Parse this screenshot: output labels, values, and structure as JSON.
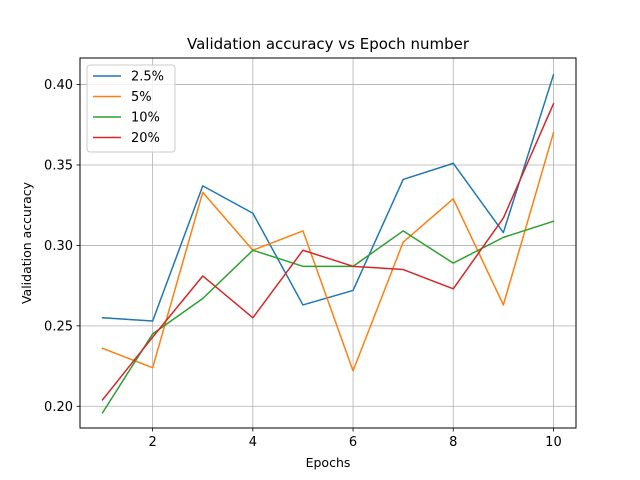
{
  "chart_data": {
    "type": "line",
    "title": "Validation accuracy vs Epoch number",
    "xlabel": "Epochs",
    "ylabel": "Validation accuracy",
    "xlim": [
      0.55,
      10.45
    ],
    "ylim": [
      0.1865,
      0.4165
    ],
    "x_ticks": [
      2,
      4,
      6,
      8,
      10
    ],
    "y_ticks": [
      0.2,
      0.25,
      0.3,
      0.35,
      0.4
    ],
    "y_tick_labels": [
      "0.20",
      "0.25",
      "0.30",
      "0.35",
      "0.40"
    ],
    "grid": true,
    "legend_position": "top-left",
    "x": [
      1,
      2,
      3,
      4,
      5,
      6,
      7,
      8,
      9,
      10
    ],
    "series": [
      {
        "name": "2.5%",
        "color": "#1f77b4",
        "values": [
          0.255,
          0.253,
          0.337,
          0.32,
          0.263,
          0.272,
          0.341,
          0.351,
          0.308,
          0.406
        ]
      },
      {
        "name": "5%",
        "color": "#ff7f0e",
        "values": [
          0.236,
          0.224,
          0.333,
          0.297,
          0.309,
          0.222,
          0.302,
          0.329,
          0.263,
          0.37
        ]
      },
      {
        "name": "10%",
        "color": "#2ca02c",
        "values": [
          0.196,
          0.245,
          0.267,
          0.297,
          0.287,
          0.287,
          0.309,
          0.289,
          0.305,
          0.315
        ]
      },
      {
        "name": "20%",
        "color": "#d62728",
        "values": [
          0.204,
          0.243,
          0.281,
          0.255,
          0.297,
          0.287,
          0.285,
          0.273,
          0.317,
          0.388
        ]
      }
    ]
  }
}
